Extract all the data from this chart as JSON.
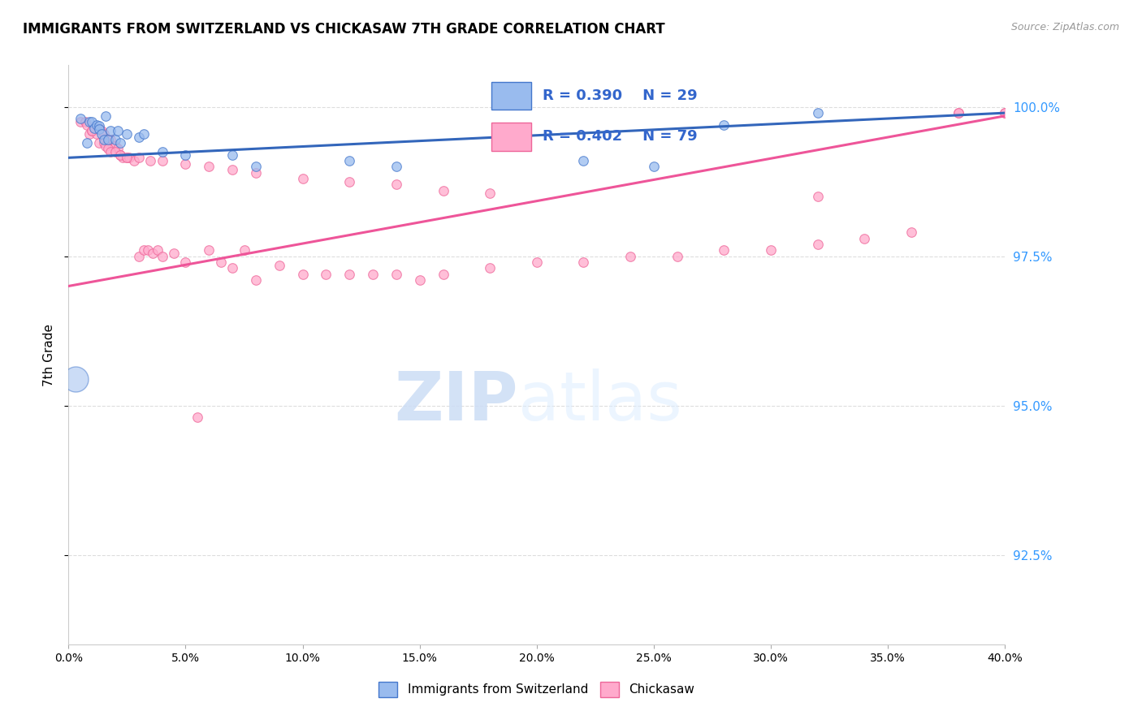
{
  "title": "IMMIGRANTS FROM SWITZERLAND VS CHICKASAW 7TH GRADE CORRELATION CHART",
  "source": "Source: ZipAtlas.com",
  "ylabel": "7th Grade",
  "ylabel_right_values": [
    1.0,
    0.975,
    0.95,
    0.925
  ],
  "x_min": 0.0,
  "x_max": 0.4,
  "y_min": 0.91,
  "y_max": 1.007,
  "blue_R": 0.39,
  "blue_N": 29,
  "pink_R": 0.402,
  "pink_N": 79,
  "blue_color": "#99BBEE",
  "pink_color": "#FFAACC",
  "blue_edge_color": "#4477CC",
  "pink_edge_color": "#EE6699",
  "blue_line_color": "#3366BB",
  "pink_line_color": "#EE5599",
  "blue_scatter_x": [
    0.005,
    0.008,
    0.009,
    0.01,
    0.011,
    0.012,
    0.013,
    0.013,
    0.014,
    0.015,
    0.016,
    0.017,
    0.018,
    0.02,
    0.021,
    0.022,
    0.025,
    0.03,
    0.032,
    0.04,
    0.05,
    0.07,
    0.08,
    0.12,
    0.14,
    0.22,
    0.25,
    0.28,
    0.32
  ],
  "blue_scatter_y": [
    0.998,
    0.994,
    0.9975,
    0.9975,
    0.9965,
    0.997,
    0.9968,
    0.9963,
    0.9955,
    0.9945,
    0.9985,
    0.9945,
    0.996,
    0.9945,
    0.996,
    0.994,
    0.9955,
    0.995,
    0.9955,
    0.9925,
    0.992,
    0.992,
    0.99,
    0.991,
    0.99,
    0.991,
    0.99,
    0.997,
    0.999
  ],
  "blue_large_x": [
    0.003
  ],
  "blue_large_y": [
    0.9545
  ],
  "blue_large_size": 500,
  "blue_scatter_size": 70,
  "pink_scatter_x": [
    0.005,
    0.007,
    0.008,
    0.009,
    0.01,
    0.011,
    0.012,
    0.013,
    0.014,
    0.015,
    0.016,
    0.017,
    0.018,
    0.019,
    0.02,
    0.021,
    0.022,
    0.023,
    0.025,
    0.026,
    0.028,
    0.03,
    0.032,
    0.034,
    0.036,
    0.038,
    0.04,
    0.045,
    0.05,
    0.055,
    0.06,
    0.065,
    0.07,
    0.075,
    0.08,
    0.09,
    0.1,
    0.11,
    0.12,
    0.13,
    0.14,
    0.15,
    0.16,
    0.18,
    0.2,
    0.22,
    0.24,
    0.26,
    0.28,
    0.3,
    0.32,
    0.34,
    0.36,
    0.38,
    0.4,
    0.01,
    0.013,
    0.015,
    0.016,
    0.017,
    0.018,
    0.02,
    0.022,
    0.025,
    0.03,
    0.035,
    0.04,
    0.05,
    0.06,
    0.07,
    0.08,
    0.1,
    0.12,
    0.14,
    0.16,
    0.18,
    0.32,
    0.38,
    0.4
  ],
  "pink_scatter_y": [
    0.9975,
    0.9975,
    0.997,
    0.9955,
    0.996,
    0.9965,
    0.9955,
    0.9965,
    0.996,
    0.9955,
    0.9945,
    0.9945,
    0.9945,
    0.9935,
    0.9935,
    0.993,
    0.992,
    0.9915,
    0.9915,
    0.9915,
    0.991,
    0.975,
    0.976,
    0.976,
    0.9755,
    0.976,
    0.975,
    0.9755,
    0.974,
    0.948,
    0.976,
    0.974,
    0.973,
    0.976,
    0.971,
    0.9735,
    0.972,
    0.972,
    0.972,
    0.972,
    0.972,
    0.971,
    0.972,
    0.973,
    0.974,
    0.974,
    0.975,
    0.975,
    0.976,
    0.976,
    0.977,
    0.978,
    0.979,
    0.999,
    0.999,
    0.996,
    0.994,
    0.994,
    0.9935,
    0.993,
    0.9925,
    0.9925,
    0.992,
    0.9915,
    0.9915,
    0.991,
    0.991,
    0.9905,
    0.99,
    0.9895,
    0.989,
    0.988,
    0.9875,
    0.987,
    0.986,
    0.9855,
    0.985,
    0.999,
    0.999
  ],
  "blue_line_x": [
    0.0,
    0.4
  ],
  "blue_line_y": [
    0.9915,
    0.999
  ],
  "pink_line_x": [
    0.0,
    0.4
  ],
  "pink_line_y": [
    0.97,
    0.9985
  ],
  "legend_label_blue": "Immigrants from Switzerland",
  "legend_label_pink": "Chickasaw",
  "background_color": "#FFFFFF",
  "grid_color": "#DDDDDD"
}
